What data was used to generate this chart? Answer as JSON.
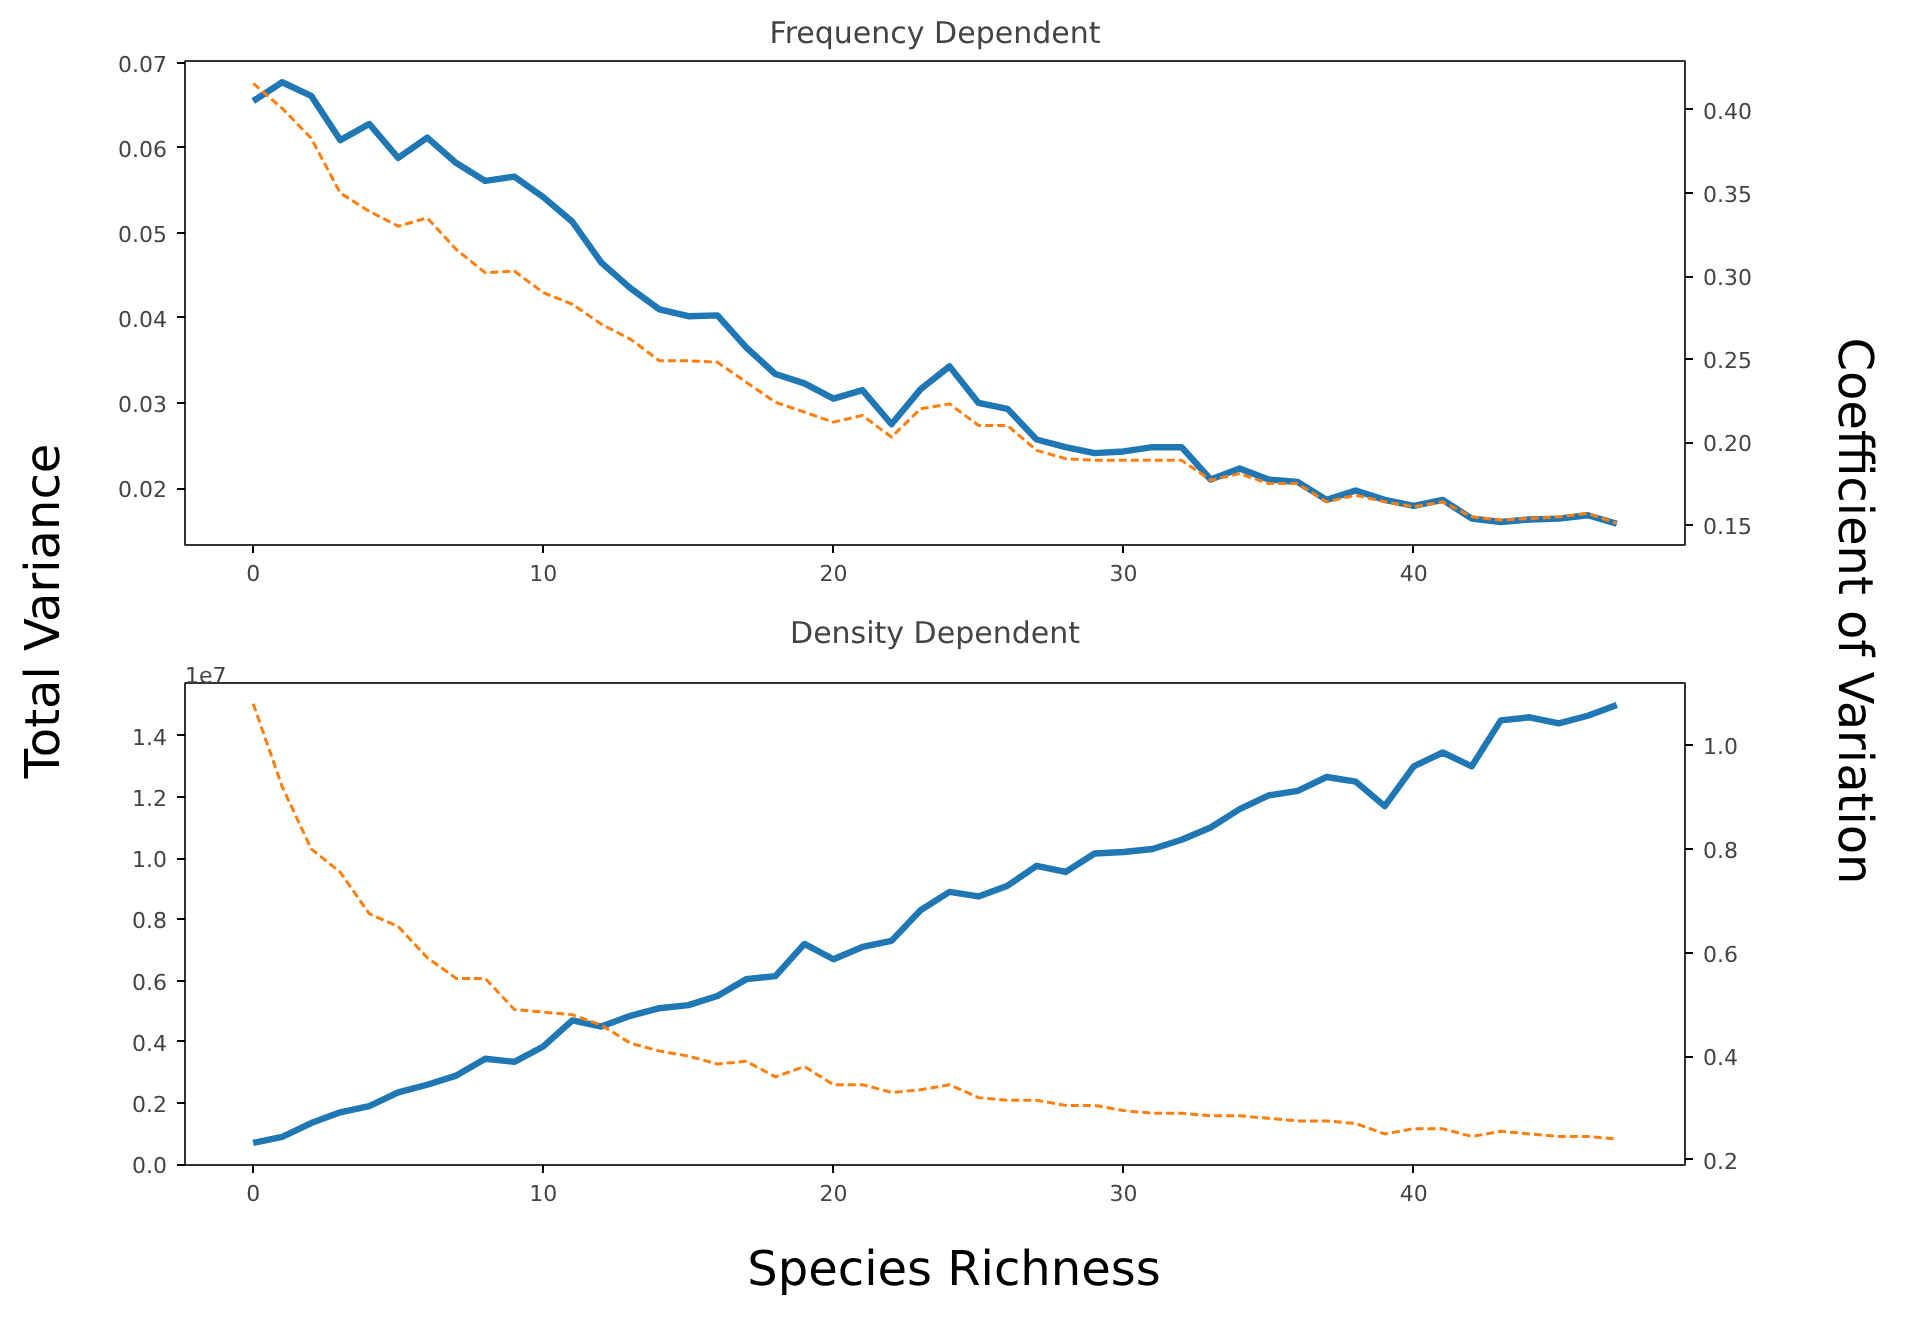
{
  "chart_data": [
    {
      "type": "line",
      "title": "Frequency Dependent",
      "ylabel": "Total Variance",
      "y2label": "Coefficient of Variation",
      "grid": false,
      "marker": "none",
      "x": [
        0,
        1,
        2,
        3,
        4,
        5,
        6,
        7,
        8,
        9,
        10,
        11,
        12,
        13,
        14,
        15,
        16,
        17,
        18,
        19,
        20,
        21,
        22,
        23,
        24,
        25,
        26,
        27,
        28,
        29,
        30,
        31,
        32,
        33,
        34,
        35,
        36,
        37,
        38,
        39,
        40,
        41,
        42,
        43,
        44,
        45,
        46,
        47
      ],
      "xlim": [
        -2.35,
        49.35
      ],
      "xticks": [
        0,
        10,
        20,
        30,
        40
      ],
      "ylim": [
        0.0133,
        0.0702
      ],
      "yticks": [
        0.02,
        0.03,
        0.04,
        0.05,
        0.06,
        0.07
      ],
      "y2lim": [
        0.138,
        0.4295
      ],
      "y2ticks": [
        {
          "value": 0.15,
          "label": "0.15"
        },
        {
          "value": 0.2,
          "label": "0.20"
        },
        {
          "value": 0.25,
          "label": "0.25"
        },
        {
          "value": 0.3,
          "label": "0.30"
        },
        {
          "value": 0.35,
          "label": "0.35"
        },
        {
          "value": 0.4,
          "label": "0.40"
        }
      ],
      "series": [
        {
          "color": "#1f77b4",
          "line_style": "solid",
          "values": [
            0.0655,
            0.0677,
            0.0661,
            0.0609,
            0.0628,
            0.0588,
            0.0612,
            0.0582,
            0.0561,
            0.0566,
            0.0542,
            0.0513,
            0.0465,
            0.0435,
            0.041,
            0.0402,
            0.0403,
            0.0365,
            0.0334,
            0.0323,
            0.0305,
            0.0315,
            0.0275,
            0.0316,
            0.0343,
            0.03,
            0.0293,
            0.0257,
            0.0248,
            0.0241,
            0.0243,
            0.0248,
            0.0248,
            0.021,
            0.0223,
            0.021,
            0.0207,
            0.0186,
            0.0197,
            0.0186,
            0.0179,
            0.0186,
            0.0164,
            0.016,
            0.0163,
            0.0164,
            0.0168,
            0.0158
          ]
        },
        {
          "color": "#ff7f0e",
          "line_style": "dashed",
          "axis": "y2",
          "values": [
            0.416,
            0.401,
            0.383,
            0.35,
            0.339,
            0.33,
            0.335,
            0.316,
            0.302,
            0.303,
            0.29,
            0.283,
            0.271,
            0.262,
            0.249,
            0.249,
            0.248,
            0.236,
            0.224,
            0.218,
            0.212,
            0.216,
            0.203,
            0.22,
            0.223,
            0.21,
            0.21,
            0.195,
            0.19,
            0.189,
            0.189,
            0.189,
            0.189,
            0.177,
            0.181,
            0.175,
            0.175,
            0.164,
            0.168,
            0.164,
            0.161,
            0.164,
            0.155,
            0.153,
            0.154,
            0.155,
            0.157,
            0.151
          ]
        }
      ]
    },
    {
      "type": "line",
      "title": "Density Dependent",
      "xlabel": "Species Richness",
      "annotations": [
        "1e7"
      ],
      "grid": false,
      "marker": "none",
      "x": [
        0,
        1,
        2,
        3,
        4,
        5,
        6,
        7,
        8,
        9,
        10,
        11,
        12,
        13,
        14,
        15,
        16,
        17,
        18,
        19,
        20,
        21,
        22,
        23,
        24,
        25,
        26,
        27,
        28,
        29,
        30,
        31,
        32,
        33,
        34,
        35,
        36,
        37,
        38,
        39,
        40,
        41,
        42,
        43,
        44,
        45,
        46,
        47
      ],
      "xlim": [
        -2.35,
        49.35
      ],
      "xticks": [
        0,
        10,
        20,
        30,
        40
      ],
      "ylim": [
        -0.002,
        1.572
      ],
      "yticks": [
        {
          "value": 0,
          "label": "0.0"
        },
        {
          "value": 0.2,
          "label": "0.2"
        },
        {
          "value": 0.4,
          "label": "0.4"
        },
        {
          "value": 0.6,
          "label": "0.6"
        },
        {
          "value": 0.8,
          "label": "0.8"
        },
        {
          "value": 1.0,
          "label": "1.0"
        },
        {
          "value": 1.2,
          "label": "1.2"
        },
        {
          "value": 1.4,
          "label": "1.4"
        }
      ],
      "y2lim": [
        0.19,
        1.12
      ],
      "y2ticks": [
        {
          "value": 0.2,
          "label": "0.2"
        },
        {
          "value": 0.4,
          "label": "0.4"
        },
        {
          "value": 0.6,
          "label": "0.6"
        },
        {
          "value": 0.8,
          "label": "0.8"
        },
        {
          "value": 1.0,
          "label": "1.0"
        }
      ],
      "series": [
        {
          "color": "#1f77b4",
          "line_style": "solid",
          "values": [
            0.07,
            0.09,
            0.135,
            0.17,
            0.19,
            0.235,
            0.26,
            0.29,
            0.345,
            0.335,
            0.385,
            0.47,
            0.45,
            0.485,
            0.51,
            0.52,
            0.55,
            0.605,
            0.615,
            0.72,
            0.67,
            0.71,
            0.73,
            0.83,
            0.89,
            0.875,
            0.91,
            0.975,
            0.955,
            1.015,
            1.02,
            1.03,
            1.06,
            1.1,
            1.16,
            1.205,
            1.22,
            1.265,
            1.25,
            1.17,
            1.3,
            1.345,
            1.3,
            1.45,
            1.46,
            1.44,
            1.465,
            1.5
          ]
        },
        {
          "color": "#ff7f0e",
          "line_style": "dashed",
          "axis": "y2",
          "values": [
            1.08,
            0.92,
            0.8,
            0.755,
            0.675,
            0.65,
            0.59,
            0.55,
            0.55,
            0.49,
            0.485,
            0.48,
            0.46,
            0.425,
            0.41,
            0.4,
            0.385,
            0.39,
            0.36,
            0.38,
            0.345,
            0.345,
            0.33,
            0.335,
            0.345,
            0.32,
            0.315,
            0.315,
            0.305,
            0.305,
            0.295,
            0.29,
            0.29,
            0.285,
            0.285,
            0.28,
            0.275,
            0.275,
            0.27,
            0.25,
            0.26,
            0.26,
            0.245,
            0.255,
            0.25,
            0.245,
            0.245,
            0.24
          ]
        }
      ]
    }
  ]
}
